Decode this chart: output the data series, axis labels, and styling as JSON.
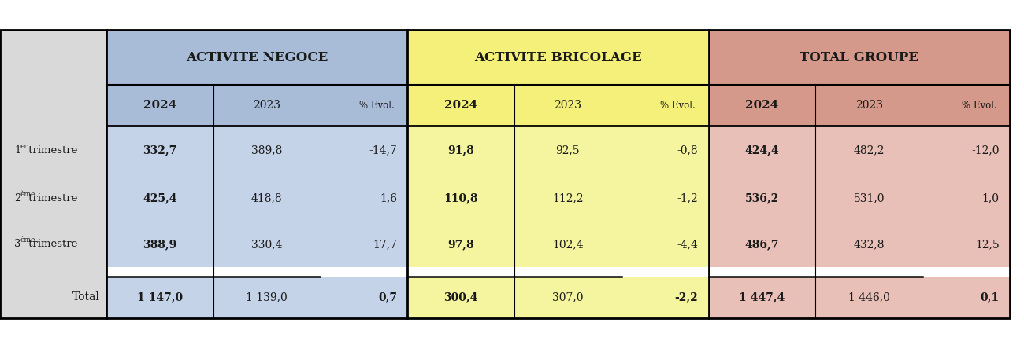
{
  "title_negoce": "ACTIVITE NEGOCE",
  "title_bricolage": "ACTIVITE BRICOLAGE",
  "title_total": "TOTAL GROUPE",
  "col_headers": [
    "2024",
    "2023",
    "% Evol.",
    "2024",
    "2023",
    "% Evol.",
    "2024",
    "2023",
    "% Evol."
  ],
  "row_labels_superscript": [
    {
      "base": "1",
      "sup": "er",
      "rest": " trimestre"
    },
    {
      "base": "2",
      "sup": "ème",
      "rest": " trimestre"
    },
    {
      "base": "3",
      "sup": "ème",
      "rest": " trimestre"
    },
    {
      "base": "",
      "sup": "",
      "rest": "Total"
    }
  ],
  "data": [
    [
      "332,7",
      "389,8",
      "-14,7",
      "91,8",
      "92,5",
      "-0,8",
      "424,4",
      "482,2",
      "-12,0"
    ],
    [
      "425,4",
      "418,8",
      "1,6",
      "110,8",
      "112,2",
      "-1,2",
      "536,2",
      "531,0",
      "1,0"
    ],
    [
      "388,9",
      "330,4",
      "17,7",
      "97,8",
      "102,4",
      "-4,4",
      "486,7",
      "432,8",
      "12,5"
    ],
    [
      "1 147,0",
      "1 139,0",
      "0,7",
      "300,4",
      "307,0",
      "-2,2",
      "1 447,4",
      "1 446,0",
      "0,1"
    ]
  ],
  "color_negoce": "#a8bcd8",
  "color_negoce_body": "#c5d3e8",
  "color_bricolage": "#f5f07a",
  "color_bricolage_body": "#f5f5a0",
  "color_total": "#d4998a",
  "color_total_body": "#e8c0b8",
  "color_label_bg": "#d9d9d9",
  "color_white": "#ffffff",
  "color_bg": "#ffffff",
  "text_color": "#1a1a1a"
}
